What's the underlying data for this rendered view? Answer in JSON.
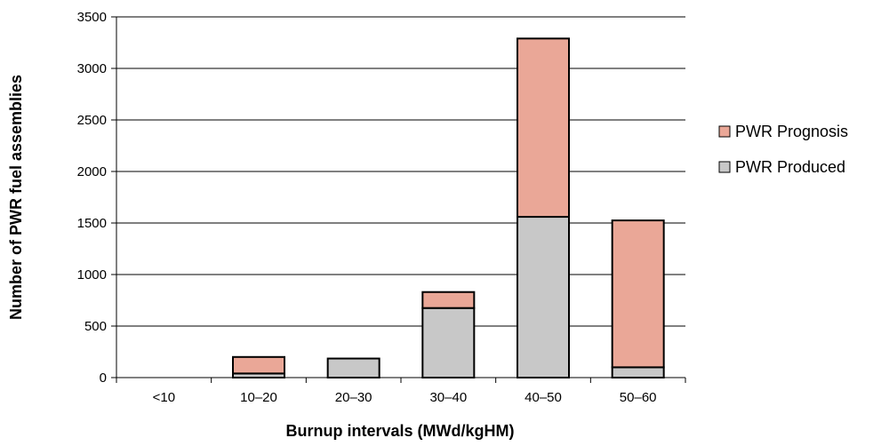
{
  "chart_data": {
    "type": "bar",
    "stacked": true,
    "categories": [
      "<10",
      "10–20",
      "20–30",
      "30–40",
      "40–50",
      "50–60"
    ],
    "series": [
      {
        "name": "PWR Produced",
        "values": [
          0,
          40,
          185,
          675,
          1560,
          100
        ],
        "color": "#c8c8c8"
      },
      {
        "name": "PWR Prognosis",
        "values": [
          0,
          160,
          0,
          155,
          1730,
          1425
        ],
        "color": "#eaa797"
      }
    ],
    "title": "",
    "xlabel": "Burnup intervals (MWd/kgHM)",
    "ylabel": "Number of PWR fuel assemblies",
    "ylim": [
      0,
      3500
    ],
    "yticks": [
      0,
      500,
      1000,
      1500,
      2000,
      2500,
      3000,
      3500
    ],
    "grid": true,
    "legend_position": "right"
  }
}
